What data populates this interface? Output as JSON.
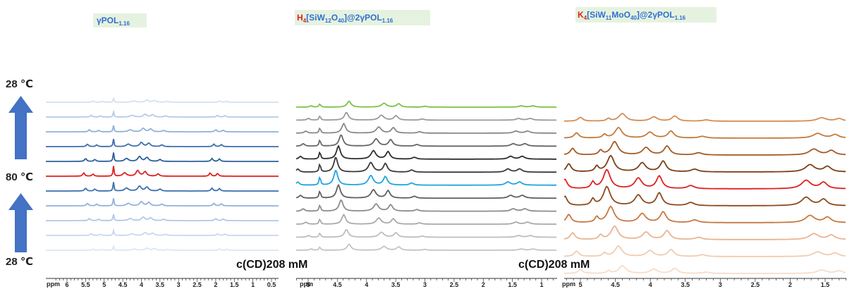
{
  "panels": [
    {
      "title": [
        "γPOL",
        "1.16"
      ],
      "unit": "ppm",
      "ticks": [
        6,
        5.5,
        5,
        4.5,
        4,
        3.5,
        3,
        2.5,
        2,
        1.5,
        1,
        0.5
      ]
    },
    {
      "title": [
        "H",
        "4",
        "[SiW",
        "12",
        "O",
        "40",
        "]@2γPOL",
        "1.16"
      ],
      "unit": "ppm",
      "ticks": [
        5,
        4.5,
        4,
        3.5,
        3,
        2.5,
        2,
        1.5,
        1
      ]
    },
    {
      "title": [
        "K",
        "4",
        "[SiW",
        "11",
        "MoO",
        "40",
        "]@2γPOL",
        "1.16"
      ],
      "unit": "ppm",
      "ticks": [
        5,
        4.5,
        4,
        3.5,
        3,
        2.5,
        2,
        1.5
      ]
    }
  ],
  "temperatures": [
    "28 ℃",
    "80 ℃",
    "28 ℃"
  ],
  "notes": [
    "c(CD)208 mM",
    "c(CD)208 mM"
  ]
}
